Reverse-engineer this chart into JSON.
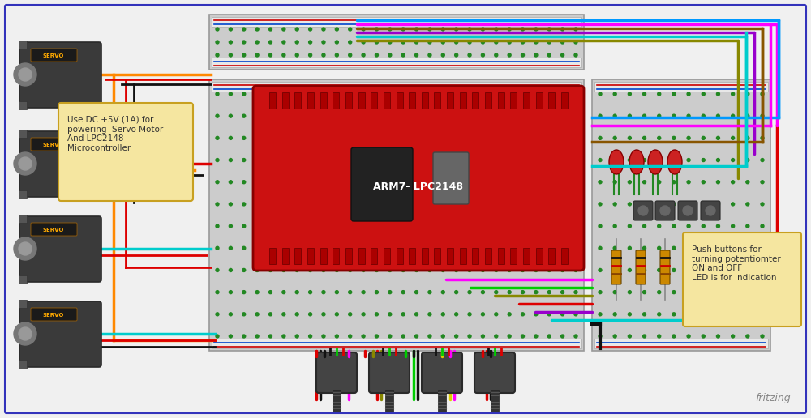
{
  "bg_color": "#f0f0f0",
  "border_color": "#3333bb",
  "fritzing_text": "fritzing",
  "note1_text": "Use DC +5V (1A) for\npowering  Servo Motor\nAnd LPC2148\nMicrocontroller",
  "note2_text": "Push buttons for\nturning potentiomter\nON and OFF\nLED is for Indication",
  "note_bg": "#f5e6a0",
  "note_border": "#c8a020",
  "breadboard_bg": "#cccccc",
  "breadboard_border": "#aaaaaa",
  "mcu_color": "#cc1111",
  "mcu_label": "ARM7- LPC2148",
  "wire_colors": {
    "blue": "#0099ff",
    "magenta": "#ff00ff",
    "brown": "#885500",
    "purple": "#9900cc",
    "cyan": "#00cccc",
    "green": "#00cc00",
    "red": "#dd0000",
    "orange": "#ff8800",
    "yellow": "#ddcc00",
    "olive": "#888800",
    "black": "#111111",
    "teal": "#008888"
  }
}
